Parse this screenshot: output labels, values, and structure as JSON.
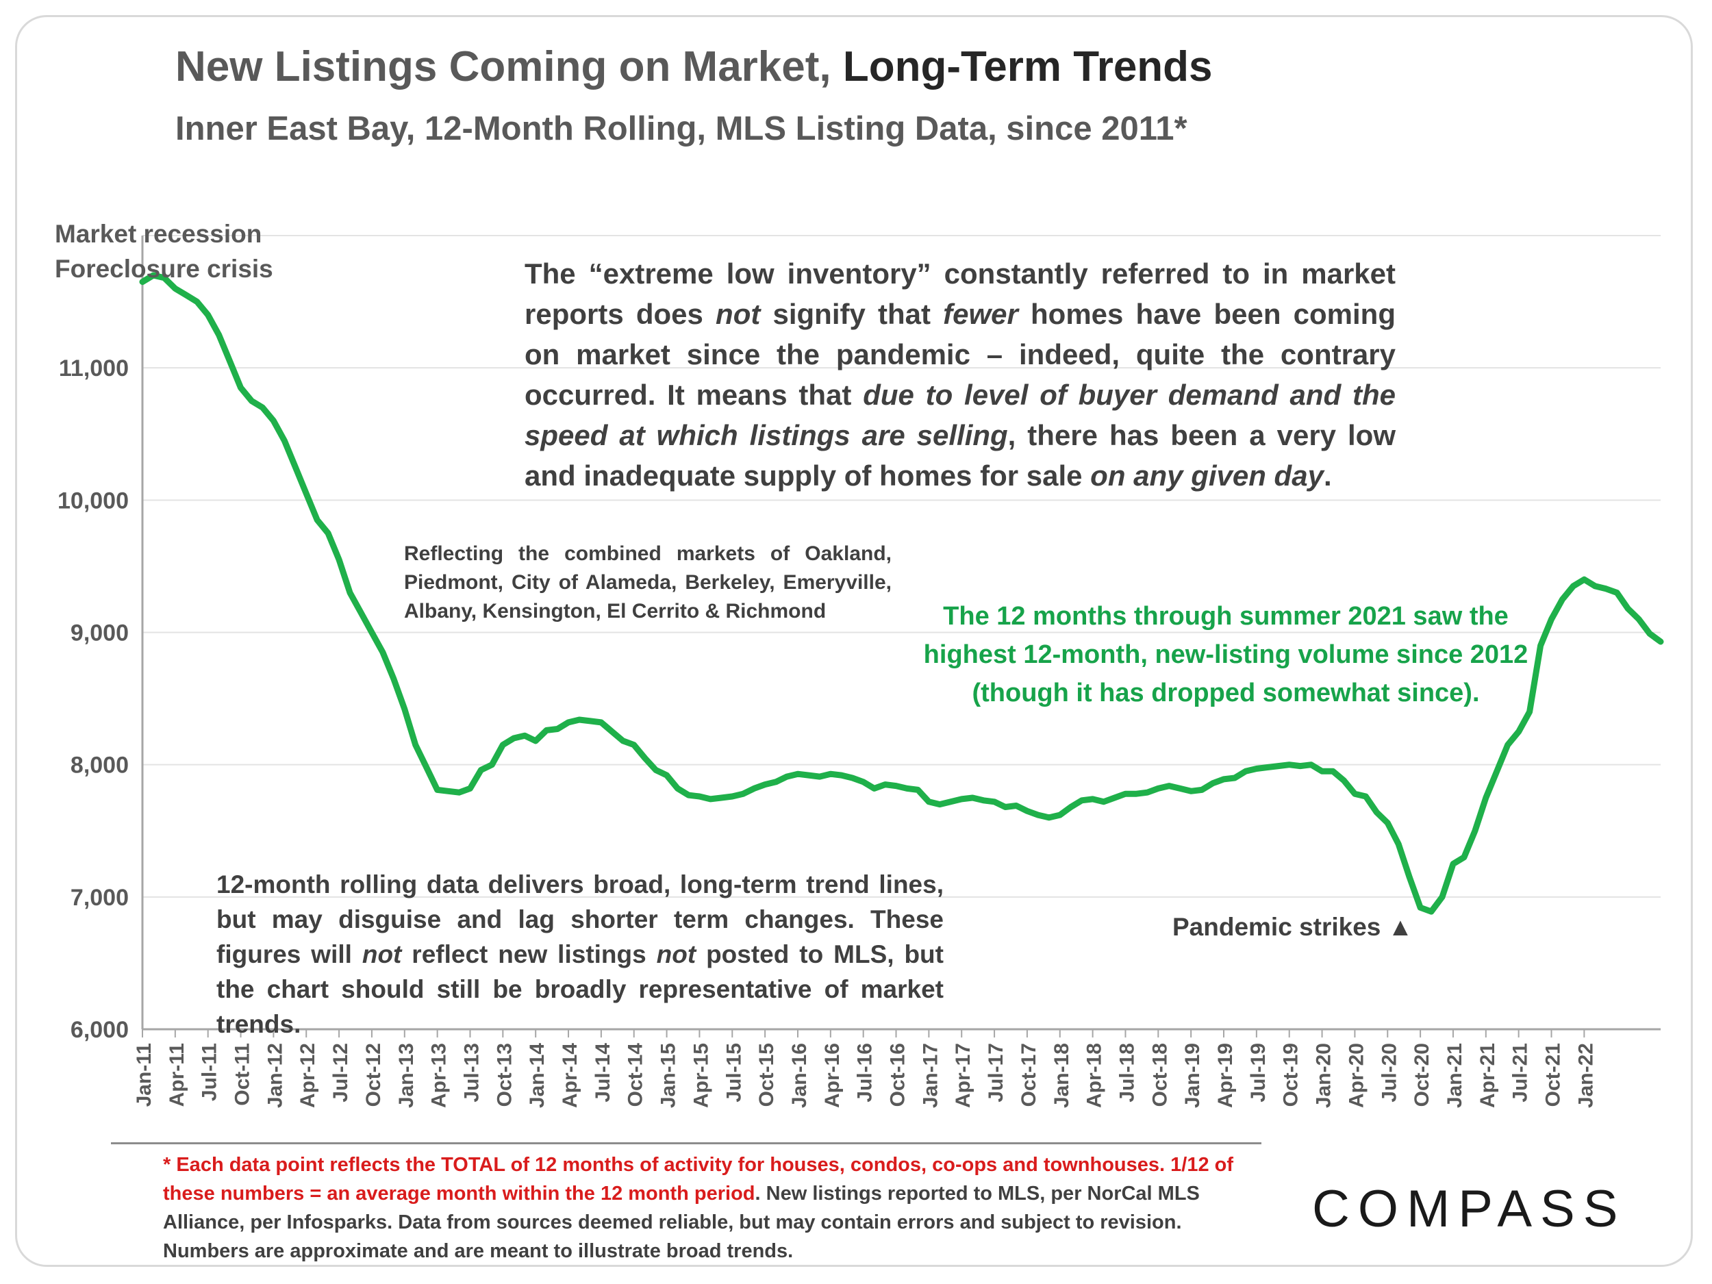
{
  "title": {
    "part1": "New Listings Coming on Market, ",
    "part2": "Long-Term Trends"
  },
  "subtitle": "Inner East Bay, 12-Month Rolling, MLS Listing Data, since 2011*",
  "annotations": {
    "recession": "Market recession\nForeclosure crisis",
    "inventory": {
      "s1": "The “extreme low inventory” constantly referred to in market reports does ",
      "s2": "not",
      "s3": " signify that ",
      "s4": "fewer",
      "s5": " homes have been coming on market since the pandemic – indeed, quite the contrary occurred. It means that ",
      "s6": "due to level of buyer demand and the speed at which listings are selling",
      "s7": ", there has been a very low and inadequate supply of homes for sale ",
      "s8": "on any given day",
      "s9": "."
    },
    "markets": "Reflecting the combined markets of Oakland, Piedmont, City of Alameda, Berkeley, Emeryville, Albany, Kensington, El Cerrito & Richmond",
    "summer_2021": "The 12 months through summer 2021 saw the highest 12-month, new-listing volume since 2012 (though it has dropped somewhat since).",
    "rolling": {
      "s1": "12-month rolling data delivers broad, long-term trend lines, but may disguise and lag shorter term changes. These figures will ",
      "s2": "not",
      "s3": " reflect new listings ",
      "s4": "not",
      "s5": " posted to MLS, but the chart should still be broadly representative of market trends."
    },
    "pandemic": "Pandemic strikes ▲"
  },
  "footnote": {
    "red": "* Each data point reflects the TOTAL of 12 months of activity for houses, condos, co-ops and townhouses. 1/12 of these numbers = an average month within the 12 month period",
    "rest": ". New listings reported to MLS, per NorCal MLS Alliance, per Infosparks. Data from sources deemed reliable, but may contain errors and subject to revision. Numbers are approximate and are meant to illustrate broad trends."
  },
  "logo": "COMPASS",
  "colors": {
    "line": "#1fb04a",
    "grid": "#e3e3e3",
    "axis": "#a6a6a6",
    "highlight": "#17a34a",
    "footnote_red": "#d91c1c"
  },
  "chart_data": {
    "type": "line",
    "title": "New Listings Coming on Market, Long-Term Trends",
    "subtitle": "Inner East Bay, 12-Month Rolling, MLS Listing Data, since 2011*",
    "xlabel": "",
    "ylabel": "",
    "ylim": [
      6000,
      12000
    ],
    "yticks": [
      6000,
      7000,
      8000,
      9000,
      10000,
      11000
    ],
    "ytick_labels": [
      "6,000",
      "7,000",
      "8,000",
      "9,000",
      "10,000",
      "11,000"
    ],
    "grid": true,
    "legend": "none",
    "xtick_labels": [
      "Jan-11",
      "Apr-11",
      "Jul-11",
      "Oct-11",
      "Jan-12",
      "Apr-12",
      "Jul-12",
      "Oct-12",
      "Jan-13",
      "Apr-13",
      "Jul-13",
      "Oct-13",
      "Jan-14",
      "Apr-14",
      "Jul-14",
      "Oct-14",
      "Jan-15",
      "Apr-15",
      "Jul-15",
      "Oct-15",
      "Jan-16",
      "Apr-16",
      "Jul-16",
      "Oct-16",
      "Jan-17",
      "Apr-17",
      "Jul-17",
      "Oct-17",
      "Jan-18",
      "Apr-18",
      "Jul-18",
      "Oct-18",
      "Jan-19",
      "Apr-19",
      "Jul-19",
      "Oct-19",
      "Jan-20",
      "Apr-20",
      "Jul-20",
      "Oct-20",
      "Jan-21",
      "Apr-21",
      "Jul-21",
      "Oct-21",
      "Jan-22"
    ],
    "series": [
      {
        "values": [
          11650,
          11700,
          11680,
          11600,
          11550,
          11500,
          11400,
          11250,
          11050,
          10850,
          10750,
          10700,
          10600,
          10450,
          10250,
          10050,
          9850,
          9750,
          9550,
          9300,
          9150,
          9000,
          8850,
          8650,
          8420,
          8150,
          7980,
          7810,
          7800,
          7790,
          7820,
          7960,
          8000,
          8150,
          8200,
          8220,
          8180,
          8260,
          8270,
          8320,
          8340,
          8330,
          8320,
          8250,
          8180,
          8150,
          8050,
          7960,
          7920,
          7820,
          7770,
          7760,
          7740,
          7750,
          7760,
          7780,
          7820,
          7850,
          7870,
          7910,
          7930,
          7920,
          7910,
          7930,
          7920,
          7900,
          7870,
          7820,
          7850,
          7840,
          7820,
          7810,
          7720,
          7700,
          7720,
          7740,
          7750,
          7730,
          7720,
          7680,
          7690,
          7650,
          7620,
          7600,
          7620,
          7680,
          7730,
          7740,
          7720,
          7750,
          7780,
          7780,
          7790,
          7820,
          7840,
          7820,
          7800,
          7810,
          7860,
          7890,
          7900,
          7950,
          7970,
          7980,
          7990,
          8000,
          7990,
          8000,
          7950,
          7950,
          7880,
          7780,
          7760,
          7640,
          7560,
          7400,
          7150,
          6920,
          6890,
          7000,
          7250,
          7300,
          7500,
          7750,
          7950,
          8150,
          8250,
          8400,
          8900,
          9100,
          9250,
          9350,
          9400,
          9350,
          9330,
          9300,
          9180,
          9100,
          8990,
          8930
        ]
      }
    ]
  }
}
